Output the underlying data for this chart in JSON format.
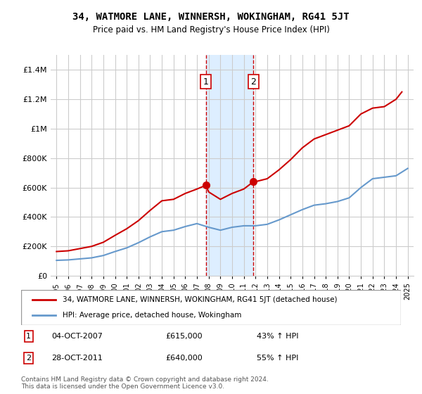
{
  "title": "34, WATMORE LANE, WINNERSH, WOKINGHAM, RG41 5JT",
  "subtitle": "Price paid vs. HM Land Registry's House Price Index (HPI)",
  "legend_label1": "34, WATMORE LANE, WINNERSH, WOKINGHAM, RG41 5JT (detached house)",
  "legend_label2": "HPI: Average price, detached house, Wokingham",
  "footnote": "Contains HM Land Registry data © Crown copyright and database right 2024.\nThis data is licensed under the Open Government Licence v3.0.",
  "sale1_label": "1",
  "sale1_date": "04-OCT-2007",
  "sale1_price": "£615,000",
  "sale1_hpi": "43% ↑ HPI",
  "sale2_label": "2",
  "sale2_date": "28-OCT-2011",
  "sale2_price": "£640,000",
  "sale2_hpi": "55% ↑ HPI",
  "sale1_x": 2007.75,
  "sale2_x": 2011.83,
  "shade_x1": 2007.75,
  "shade_x2": 2011.83,
  "ylim": [
    0,
    1500000
  ],
  "xlim": [
    1994.5,
    2025.5
  ],
  "yticks": [
    0,
    200000,
    400000,
    600000,
    800000,
    1000000,
    1200000,
    1400000
  ],
  "ytick_labels": [
    "£0",
    "£200K",
    "£400K",
    "£600K",
    "£800K",
    "£1M",
    "£1.2M",
    "£1.4M"
  ],
  "color_red": "#cc0000",
  "color_blue": "#6699cc",
  "color_shade": "#ddeeff",
  "color_dashed": "#cc0000",
  "hpi_line": {
    "x": [
      1995,
      1996,
      1997,
      1998,
      1999,
      2000,
      2001,
      2002,
      2003,
      2004,
      2005,
      2006,
      2007,
      2008,
      2009,
      2010,
      2011,
      2012,
      2013,
      2014,
      2015,
      2016,
      2017,
      2018,
      2019,
      2020,
      2021,
      2022,
      2023,
      2024,
      2025
    ],
    "y": [
      105000,
      108000,
      115000,
      122000,
      138000,
      165000,
      190000,
      225000,
      265000,
      300000,
      310000,
      335000,
      355000,
      330000,
      310000,
      330000,
      340000,
      340000,
      350000,
      380000,
      415000,
      450000,
      480000,
      490000,
      505000,
      530000,
      600000,
      660000,
      670000,
      680000,
      730000
    ]
  },
  "price_line": {
    "x": [
      1995,
      1996,
      1997,
      1998,
      1999,
      2000,
      2001,
      2002,
      2003,
      2004,
      2005,
      2006,
      2007.0,
      2007.75,
      2008,
      2009,
      2010,
      2011.0,
      2011.83,
      2012,
      2013,
      2014,
      2015,
      2016,
      2017,
      2018,
      2019,
      2020,
      2021,
      2022,
      2023,
      2024,
      2024.5
    ],
    "y": [
      165000,
      170000,
      185000,
      200000,
      228000,
      275000,
      320000,
      375000,
      445000,
      510000,
      520000,
      560000,
      590000,
      615000,
      570000,
      520000,
      560000,
      590000,
      640000,
      640000,
      660000,
      720000,
      790000,
      870000,
      930000,
      960000,
      990000,
      1020000,
      1100000,
      1140000,
      1150000,
      1200000,
      1250000
    ]
  }
}
